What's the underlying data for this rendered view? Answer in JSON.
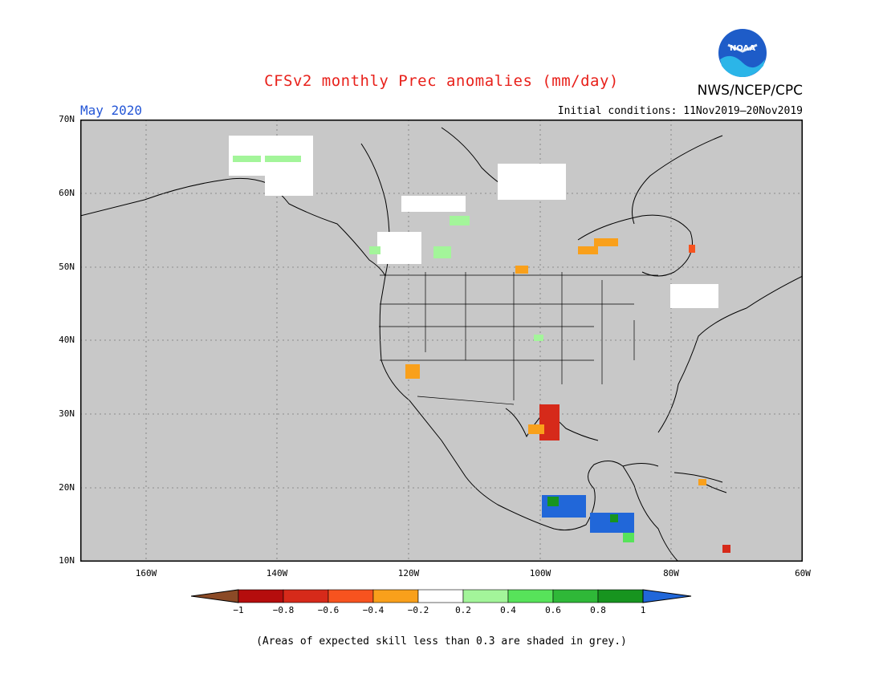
{
  "header": {
    "title": "CFSv2 monthly Prec anomalies (mm/day)",
    "month": "May 2020",
    "initial_conditions": "Initial conditions: 11Nov2019–20Nov2019",
    "agency": "NWS/NCEP/CPC",
    "logo_text": "NOAA"
  },
  "map": {
    "lat_labels": [
      "70N",
      "60N",
      "50N",
      "40N",
      "30N",
      "20N",
      "10N"
    ],
    "lon_labels": [
      "160W",
      "140W",
      "120W",
      "100W",
      "80W",
      "60W"
    ],
    "background_color": "#c8c8c8"
  },
  "colorbar": {
    "labels": [
      "−1",
      "−0.8",
      "−0.6",
      "−0.4",
      "−0.2",
      "0.2",
      "0.4",
      "0.6",
      "0.8",
      "1"
    ],
    "colors": [
      "#8b4a26",
      "#b50d0d",
      "#d62a1a",
      "#f7531f",
      "#f9a01b",
      "#ffffff",
      "#a3f59a",
      "#57e35a",
      "#2fb838",
      "#17941f",
      "#2167d9"
    ]
  },
  "footnote": "(Areas of expected skill less than 0.3 are shaded in grey.)"
}
